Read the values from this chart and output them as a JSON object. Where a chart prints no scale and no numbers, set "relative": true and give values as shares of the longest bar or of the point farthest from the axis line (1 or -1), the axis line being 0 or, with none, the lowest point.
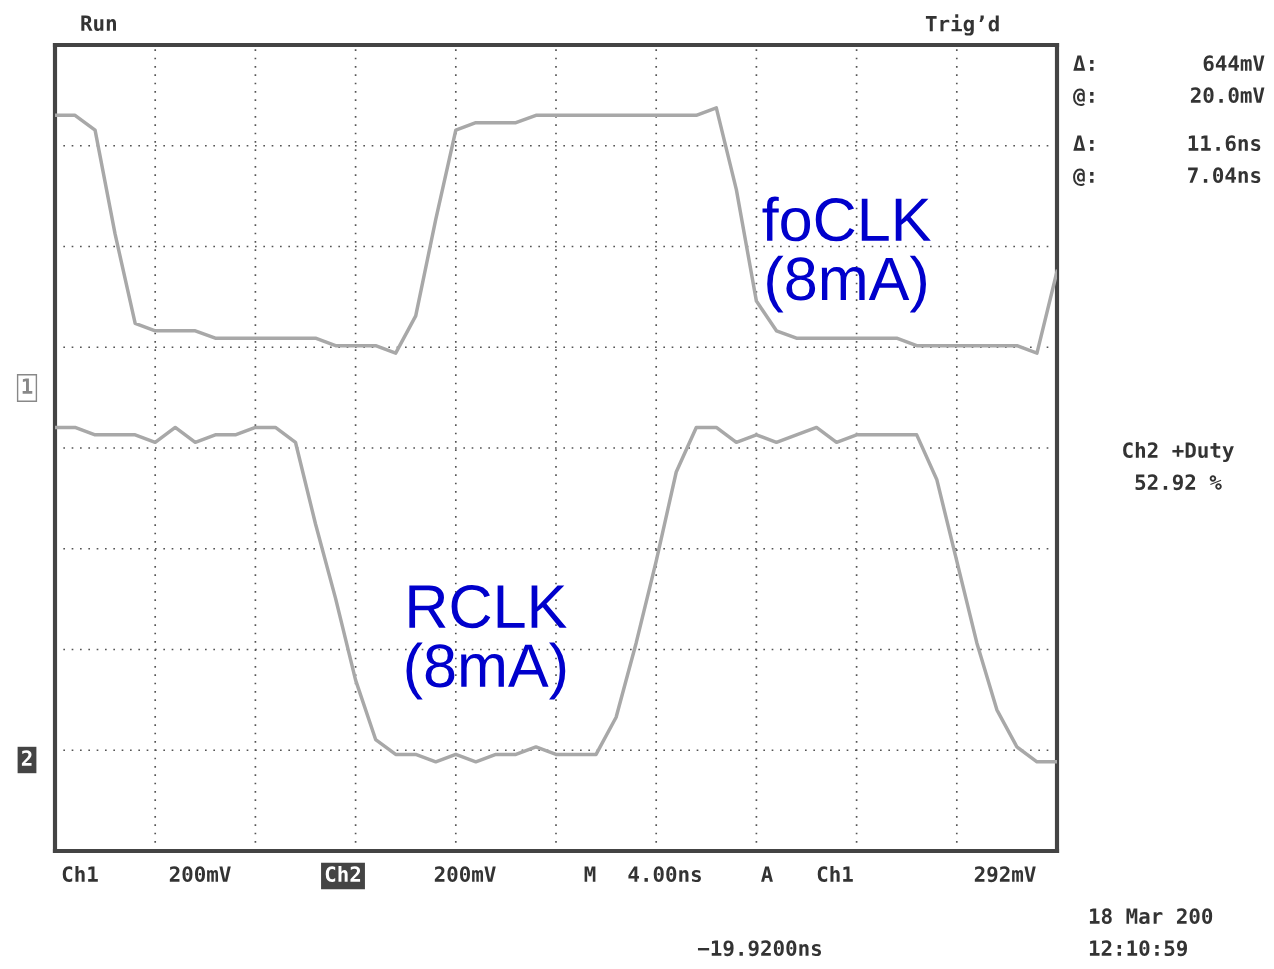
{
  "chart_data": {
    "type": "line",
    "relative": true,
    "grid": true,
    "categories": [
      null,
      null,
      null,
      null,
      null,
      null,
      null,
      null,
      null,
      null,
      null,
      null,
      null,
      null,
      null,
      null,
      null,
      null,
      null,
      null,
      null,
      null,
      null,
      null,
      null,
      null,
      null,
      null,
      null,
      null,
      null,
      null,
      null,
      null,
      null,
      null,
      null,
      null,
      null,
      null,
      null,
      null,
      null,
      null,
      null,
      null,
      null,
      null,
      null,
      null,
      null
    ],
    "series": [
      {
        "name": "foCLK (8mA)",
        "color": "#a8a8a8",
        "values": [
          0.99,
          0.99,
          0.97,
          0.83,
          0.71,
          0.7,
          0.7,
          0.7,
          0.69,
          0.69,
          0.69,
          0.69,
          0.69,
          0.69,
          0.68,
          0.68,
          0.68,
          0.67,
          0.72,
          0.85,
          0.97,
          0.98,
          0.98,
          0.98,
          0.99,
          0.99,
          0.99,
          0.99,
          0.99,
          0.99,
          0.99,
          0.99,
          0.99,
          1,
          0.89,
          0.74,
          0.7,
          0.69,
          0.69,
          0.69,
          0.69,
          0.69,
          0.69,
          0.68,
          0.68,
          0.68,
          0.68,
          0.68,
          0.68,
          0.67,
          0.78
        ]
      },
      {
        "name": "RCLK (8mA)",
        "color": "#a8a8a8",
        "values": [
          0.57,
          0.57,
          0.56,
          0.56,
          0.56,
          0.55,
          0.57,
          0.55,
          0.56,
          0.56,
          0.57,
          0.57,
          0.55,
          0.44,
          0.34,
          0.23,
          0.15,
          0.13,
          0.13,
          0.12,
          0.13,
          0.12,
          0.13,
          0.13,
          0.14,
          0.13,
          0.13,
          0.13,
          0.18,
          0.28,
          0.39,
          0.51,
          0.57,
          0.57,
          0.55,
          0.56,
          0.55,
          0.56,
          0.57,
          0.55,
          0.56,
          0.56,
          0.56,
          0.56,
          0.5,
          0.39,
          0.28,
          0.19,
          0.14,
          0.12,
          0.12
        ]
      }
    ],
    "annotations": [
      "Run",
      "Trig’d",
      "Δ:",
      "644mV",
      "@:",
      "20.0mV",
      "Δ:",
      "11.6ns",
      "@:",
      "7.04ns",
      "Ch2 +Duty",
      "52.92 %",
      "1",
      "2",
      "Ch1",
      "200mV",
      "Ch2",
      "200mV",
      "M",
      "4.00ns",
      "A",
      "Ch1",
      "292mV",
      "−19.9200ns",
      "18 Mar 200",
      "12:10:59"
    ]
  }
}
